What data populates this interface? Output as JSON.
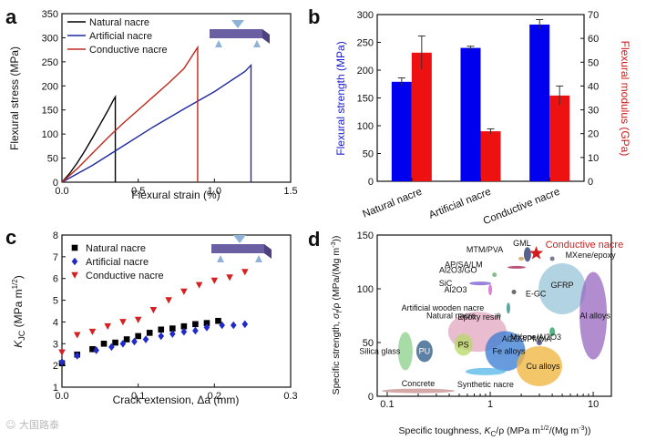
{
  "watermark": "☺ 大国路泰",
  "panels": {
    "a": {
      "letter": "a"
    },
    "b": {
      "letter": "b"
    },
    "c": {
      "letter": "c"
    },
    "d": {
      "letter": "d"
    }
  },
  "chart_data": [
    {
      "id": "a",
      "type": "line",
      "xlabel": "Flexural strain (%)",
      "ylabel": "Flexural stress (MPa)",
      "xlim": [
        0,
        1.5
      ],
      "ylim": [
        0,
        350
      ],
      "xticks": [
        "0.0",
        "0.5",
        "1.0",
        "1.5"
      ],
      "yticks": [
        "0",
        "50",
        "100",
        "150",
        "200",
        "250",
        "300",
        "350"
      ],
      "legend_position": "top-left",
      "series": [
        {
          "name": "Natural nacre",
          "color": "#000000",
          "x": [
            0,
            0.05,
            0.1,
            0.15,
            0.2,
            0.25,
            0.3,
            0.34,
            0.35,
            0.35
          ],
          "y": [
            0,
            18,
            40,
            65,
            92,
            120,
            148,
            172,
            177,
            0
          ]
        },
        {
          "name": "Artificial nacre",
          "color": "#1f2a9e",
          "x": [
            0,
            0.2,
            0.4,
            0.6,
            0.8,
            1.0,
            1.2,
            1.24,
            1.24
          ],
          "y": [
            0,
            35,
            75,
            115,
            152,
            188,
            230,
            243,
            0
          ]
        },
        {
          "name": "Conductive nacre",
          "color": "#c0281c",
          "x": [
            0,
            0.1,
            0.2,
            0.3,
            0.4,
            0.5,
            0.6,
            0.7,
            0.8,
            0.89,
            0.89
          ],
          "y": [
            0,
            28,
            60,
            92,
            122,
            150,
            178,
            206,
            236,
            280,
            0
          ]
        }
      ]
    },
    {
      "id": "b",
      "type": "bar",
      "categories": [
        "Natural nacre",
        "Artificial nacre",
        "Conductive nacre"
      ],
      "ylabel": "Flexural strength (MPa)",
      "ylabel_right": "Flexural modulus (GPa)",
      "ylim": [
        0,
        300
      ],
      "ylim_right": [
        0,
        70
      ],
      "yticks": [
        "0",
        "50",
        "100",
        "150",
        "200",
        "250",
        "300"
      ],
      "yticks_right": [
        "0",
        "10",
        "20",
        "30",
        "40",
        "50",
        "60",
        "70"
      ],
      "series": [
        {
          "axis": "left",
          "color": "#0000ee",
          "values": [
            179,
            240,
            282
          ],
          "errors": [
            7,
            3,
            9
          ]
        },
        {
          "axis": "right",
          "color": "#ee1111",
          "values": [
            54,
            21,
            36
          ],
          "errors": [
            7,
            1,
            4
          ]
        }
      ]
    },
    {
      "id": "c",
      "type": "scatter",
      "xlabel": "Crack extension, Δa (mm)",
      "ylabel_k": "K",
      "ylabel_sub": "JC",
      "ylabel_unit": " (MPa m",
      "ylabel_sup": "1/2",
      "ylabel_close": ")",
      "xlim": [
        0,
        0.3
      ],
      "ylim": [
        1,
        8
      ],
      "xticks": [
        "0.0",
        "0.1",
        "0.2",
        "0.3"
      ],
      "yticks": [
        "1",
        "2",
        "3",
        "4",
        "5",
        "6",
        "7",
        "8"
      ],
      "legend_position": "top-left",
      "series": [
        {
          "name": "Natural nacre",
          "color": "#000000",
          "marker": "square",
          "x": [
            0.0,
            0.02,
            0.04,
            0.055,
            0.07,
            0.085,
            0.1,
            0.115,
            0.13,
            0.145,
            0.16,
            0.175,
            0.19,
            0.205
          ],
          "y": [
            2.1,
            2.5,
            2.75,
            3.0,
            3.05,
            3.2,
            3.35,
            3.5,
            3.65,
            3.7,
            3.8,
            3.9,
            3.95,
            4.05
          ]
        },
        {
          "name": "Artificial nacre",
          "color": "#1f2ac8",
          "marker": "diamond",
          "x": [
            0.0,
            0.02,
            0.045,
            0.065,
            0.08,
            0.095,
            0.11,
            0.13,
            0.145,
            0.16,
            0.175,
            0.19,
            0.21,
            0.225,
            0.24
          ],
          "y": [
            2.15,
            2.45,
            2.7,
            2.85,
            3.0,
            3.1,
            3.2,
            3.35,
            3.45,
            3.55,
            3.6,
            3.75,
            3.85,
            3.85,
            3.9
          ]
        },
        {
          "name": "Conductive nacre",
          "color": "#d42020",
          "marker": "triangle-down",
          "x": [
            0.0,
            0.02,
            0.04,
            0.06,
            0.08,
            0.1,
            0.12,
            0.14,
            0.16,
            0.18,
            0.2,
            0.22,
            0.24
          ],
          "y": [
            2.6,
            3.4,
            3.55,
            3.8,
            4.0,
            4.1,
            4.55,
            5.0,
            5.4,
            5.7,
            5.9,
            6.05,
            6.3
          ]
        }
      ]
    },
    {
      "id": "d",
      "type": "scatter",
      "log_x": true,
      "xlabel_pre": "Specific toughness, ",
      "xlabel_k": "K",
      "xlabel_sub": "C",
      "xlabel_mid": "/ρ (MPa m",
      "xlabel_sup1": "1/2",
      "xlabel_mid2": "/(Mg m",
      "xlabel_sup2": "-3",
      "xlabel_end": "))",
      "ylabel_pre": "Specific strength, ",
      "ylabel_sigma": "σ",
      "ylabel_sub": "f",
      "ylabel_mid": "/ρ (MPa/(Mg m",
      "ylabel_sup": "-3",
      "ylabel_end": "))",
      "xlim": [
        0.08,
        15
      ],
      "ylim": [
        0,
        150
      ],
      "xticks": [
        "0.1",
        "1",
        "10"
      ],
      "yticks": [
        "0",
        "50",
        "100",
        "150"
      ],
      "highlight": {
        "name": "Conductive nacre",
        "color": "#d21c1c",
        "x": 2.8,
        "y": 133
      },
      "regions": [
        {
          "name": "Concrete",
          "x": 0.2,
          "y": 5
        },
        {
          "name": "Silica glass",
          "x": 0.15,
          "y": 42
        },
        {
          "name": "PU",
          "x": 0.23,
          "y": 42
        },
        {
          "name": "Epoxy resin",
          "x": 0.75,
          "y": 60
        },
        {
          "name": "PS",
          "x": 0.55,
          "y": 48
        },
        {
          "name": "Fe alloys",
          "x": 1.4,
          "y": 42
        },
        {
          "name": "Synthetic nacre",
          "x": 0.9,
          "y": 23
        },
        {
          "name": "Cu alloys",
          "x": 3,
          "y": 28
        },
        {
          "name": "GFRP",
          "x": 5,
          "y": 100
        },
        {
          "name": "Al alloys",
          "x": 10,
          "y": 75
        },
        {
          "name": "Natural nacre",
          "x": 1.2,
          "y": 75
        },
        {
          "name": "Artificial wooden nacre",
          "x": 1.5,
          "y": 82
        },
        {
          "name": "MTM/PVA",
          "x": 2,
          "y": 128
        },
        {
          "name": "GML",
          "x": 2.3,
          "y": 132
        },
        {
          "name": "AP/SA/LM",
          "x": 1.8,
          "y": 120
        },
        {
          "name": "Al2O3/GO",
          "x": 1.1,
          "y": 113
        },
        {
          "name": "SiC",
          "x": 0.8,
          "y": 105
        },
        {
          "name": "Al2O3",
          "x": 1,
          "y": 99
        },
        {
          "name": "E-GC",
          "x": 1.7,
          "y": 97
        },
        {
          "name": "MXene/epoxy",
          "x": 4,
          "y": 128
        },
        {
          "name": "Al2O3/PMMA",
          "x": 4,
          "y": 60
        },
        {
          "name": "MXene/Al2O3",
          "x": 3,
          "y": 50
        }
      ]
    }
  ]
}
